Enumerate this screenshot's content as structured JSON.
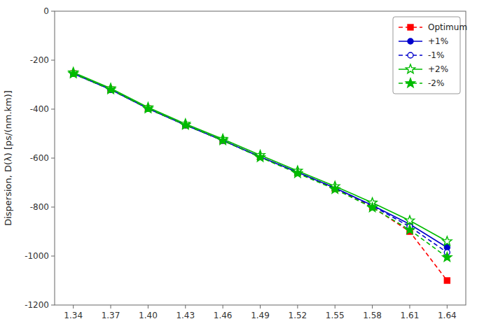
{
  "chart_data": {
    "type": "line",
    "ylabel": "Dispersion, D(λ) [ps/(nm.km)]",
    "x": [
      1.34,
      1.37,
      1.4,
      1.43,
      1.46,
      1.49,
      1.52,
      1.55,
      1.58,
      1.61,
      1.64
    ],
    "series": [
      {
        "name": "Optimum",
        "color": "#ff0000",
        "marker": "square",
        "line_style": "dashed",
        "values": [
          -255,
          -320,
          -398,
          -465,
          -528,
          -595,
          -660,
          -725,
          -800,
          -900,
          -1100
        ]
      },
      {
        "name": "+1%",
        "color": "#0000cc",
        "marker": "circle",
        "line_style": "solid",
        "values": [
          -255,
          -320,
          -398,
          -465,
          -528,
          -595,
          -658,
          -722,
          -793,
          -870,
          -965
        ]
      },
      {
        "name": "-1%",
        "color": "#0000cc",
        "marker": "open-circle",
        "line_style": "dashed",
        "values": [
          -255,
          -320,
          -398,
          -465,
          -528,
          -595,
          -658,
          -722,
          -795,
          -880,
          -985
        ]
      },
      {
        "name": "+2%",
        "color": "#00bb00",
        "marker": "open-star",
        "line_style": "solid",
        "values": [
          -250,
          -315,
          -393,
          -460,
          -522,
          -588,
          -652,
          -715,
          -782,
          -855,
          -940
        ]
      },
      {
        "name": "-2%",
        "color": "#00bb00",
        "marker": "star",
        "line_style": "dashed",
        "values": [
          -255,
          -320,
          -398,
          -465,
          -528,
          -597,
          -662,
          -727,
          -802,
          -893,
          -1005
        ]
      }
    ],
    "xlim": [
      1.325,
      1.655
    ],
    "ylim": [
      -1200,
      0
    ],
    "xticks": [
      1.34,
      1.37,
      {
        "value": 1.4,
        "label": "1.40"
      },
      1.43,
      1.46,
      1.49,
      1.52,
      1.55,
      1.58,
      1.61,
      1.64
    ],
    "yticks": [
      0,
      -200,
      -400,
      -600,
      -800,
      -1000,
      -1200
    ],
    "grid": false,
    "legend": "upper right"
  }
}
